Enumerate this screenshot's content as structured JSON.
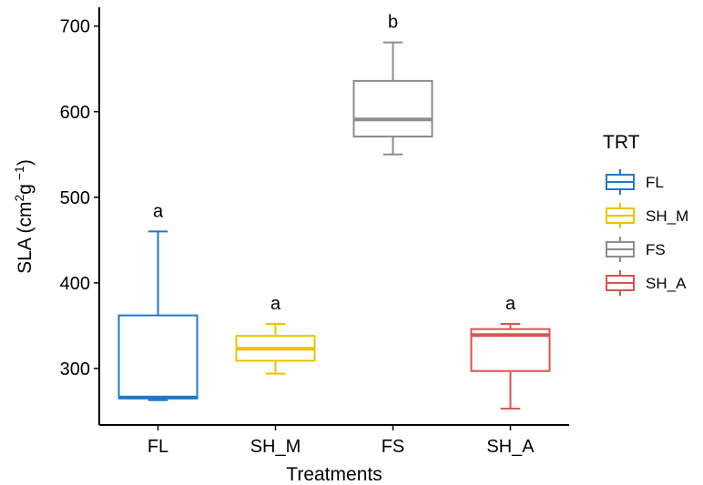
{
  "chart_data": {
    "type": "boxplot",
    "xlabel": "Treatments",
    "ylabel_parts": {
      "prefix": "SLA (cm",
      "sup1": "2",
      "middle": "g",
      "sup2": " −1",
      "suffix": ")"
    },
    "ylim": [
      234,
      722
    ],
    "yticks": [
      300,
      400,
      500,
      600,
      700
    ],
    "categories": [
      "FL",
      "SH_M",
      "FS",
      "SH_A"
    ],
    "boxes": [
      {
        "name": "FL",
        "min": 263,
        "q1": 265,
        "median": 266,
        "q3": 362,
        "max": 460,
        "label": "a",
        "color": "#1f78c8"
      },
      {
        "name": "SH_M",
        "min": 294,
        "q1": 309,
        "median": 323,
        "q3": 338,
        "max": 352,
        "label": "a",
        "color": "#f0c000"
      },
      {
        "name": "FS",
        "min": 550,
        "q1": 571,
        "median": 591,
        "q3": 636,
        "max": 681,
        "label": "b",
        "color": "#8c8c8c"
      },
      {
        "name": "SH_A",
        "min": 253,
        "q1": 297,
        "median": 339,
        "q3": 346,
        "max": 352,
        "label": "a",
        "color": "#d9534f"
      }
    ],
    "legend": {
      "title": "TRT",
      "position": "right",
      "items": [
        {
          "label": "FL",
          "color": "#1f78c8"
        },
        {
          "label": "SH_M",
          "color": "#f0c000"
        },
        {
          "label": "FS",
          "color": "#8c8c8c"
        },
        {
          "label": "SH_A",
          "color": "#d9534f"
        }
      ]
    },
    "grid": false
  }
}
